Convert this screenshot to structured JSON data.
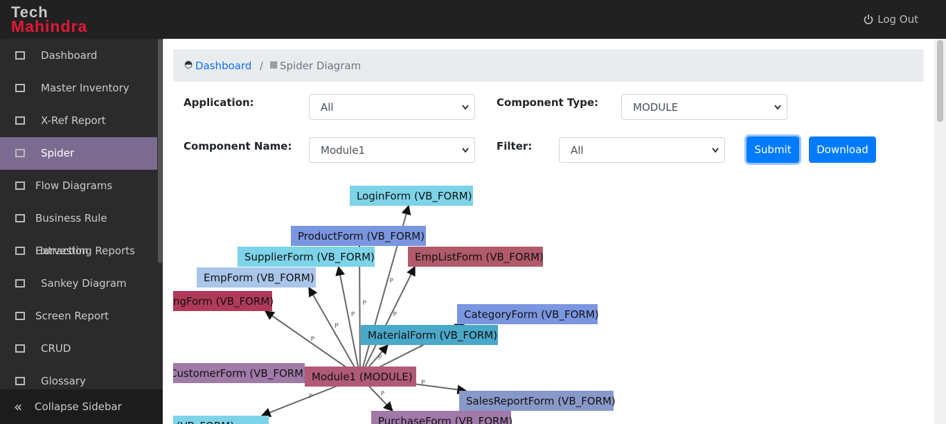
{
  "brand": {
    "line1": "Tech",
    "line2": "Mahindra"
  },
  "header": {
    "logout": "Log Out"
  },
  "sidebar": {
    "items": [
      "Dashboard",
      "Master Inventory",
      "X-Ref Report",
      "Spider",
      "Flow Diagrams",
      "Business Rule Extraction",
      "Harvesting Reports",
      "Sankey Diagram",
      "Screen Report",
      "CRUD",
      "Glossary"
    ],
    "collapse": "Collapse Sidebar"
  },
  "breadcrumb": [
    "Dashboard",
    "Spider Diagram"
  ],
  "form": {
    "application": {
      "label": "Application:",
      "value": "All"
    },
    "component_type": {
      "label": "Component Type:",
      "value": "MODULE"
    },
    "component_name": {
      "label": "Component Name:",
      "value": "Module1"
    },
    "filter": {
      "label": "Filter:",
      "value": "All"
    },
    "buttons": [
      "Submit",
      "Download"
    ]
  },
  "diagram": {
    "center": "Module1 (MODULE)",
    "nodes": [
      {
        "label": "LoginForm (VB_FORM)",
        "edge_label": "P"
      },
      {
        "label": "ProductForm (VB_FORM)",
        "edge_label": "P"
      },
      {
        "label": "SupplierForm (VB_FORM)",
        "edge_label": "P"
      },
      {
        "label": "EmpListForm (VB_FORM)",
        "edge_label": "P"
      },
      {
        "label": "EmpForm (VB_FORM)",
        "edge_label": "P"
      },
      {
        "label": "ngForm (VB_FORM)",
        "edge_label": "P"
      },
      {
        "label": "CategoryForm (VB_FORM)",
        "edge_label": "P"
      },
      {
        "label": "MaterialForm (VB_FORM)",
        "edge_label": "P"
      },
      {
        "label": "CustomerForm (VB_FORM)",
        "edge_label": "P"
      },
      {
        "label": "SalesReportForm (VB_FORM)",
        "edge_label": "P"
      },
      {
        "label": "PurchaseForm (VB_FORM)",
        "edge_label": "P"
      },
      {
        "label": "Report (VB_FORM)",
        "edge_label": "P"
      }
    ]
  }
}
